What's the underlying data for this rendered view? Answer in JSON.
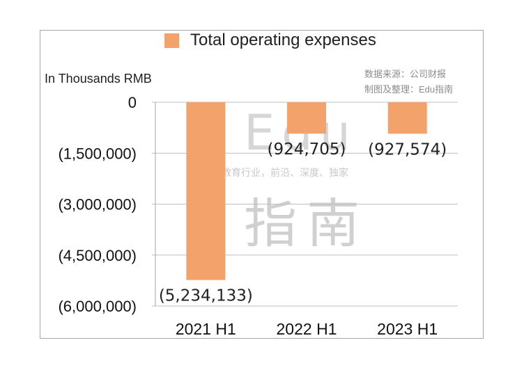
{
  "chart_data": {
    "type": "bar",
    "title": "Total operating expenses",
    "legend": [
      "Total operating expenses"
    ],
    "ylabel": "In Thousands RMB",
    "categories": [
      "2021 H1",
      "2022 H1",
      "2023 H1"
    ],
    "values": [
      -5234133,
      -924705,
      -927574
    ],
    "data_labels": [
      "(5,234,133)",
      "(924,705)",
      "(927,574)"
    ],
    "ylim": [
      -6000000,
      0
    ],
    "yticks": [
      0,
      -1500000,
      -3000000,
      -4500000,
      -6000000
    ],
    "ytick_labels": [
      "0",
      "(1,500,000)",
      "(3,000,000)",
      "(4,500,000)",
      "(6,000,000)"
    ],
    "grid": true,
    "legend_position": "top-center"
  },
  "colors": {
    "bar": "#f4a26b",
    "grid": "#bfbfbf",
    "axis": "#a6a6a6"
  },
  "source_note": {
    "line1": "数据来源：公司财报",
    "line2": "制图及整理：Edu指南"
  },
  "watermark": {
    "brand": "Edu",
    "slogan": "教育行业，前沿、深度、独家",
    "brand_cn": "指南"
  }
}
